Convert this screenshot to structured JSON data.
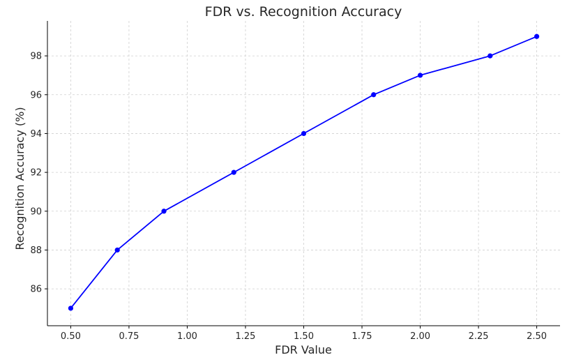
{
  "chart_data": {
    "type": "line",
    "title": "FDR vs. Recognition Accuracy",
    "xlabel": "FDR Value",
    "ylabel": "Recognition Accuracy (%)",
    "xlim": [
      0.4,
      2.6
    ],
    "ylim": [
      84.1,
      99.8
    ],
    "xticks": [
      "0.50",
      "0.75",
      "1.00",
      "1.25",
      "1.50",
      "1.75",
      "2.00",
      "2.25",
      "2.50"
    ],
    "yticks": [
      "86",
      "88",
      "90",
      "92",
      "94",
      "96",
      "98"
    ],
    "grid": true,
    "series": [
      {
        "color": "#0000ff",
        "marker": "circle",
        "x": [
          0.5,
          0.7,
          0.9,
          1.2,
          1.5,
          1.8,
          2.0,
          2.3,
          2.5
        ],
        "y": [
          85,
          88,
          90,
          92,
          94,
          96,
          97,
          98,
          99
        ]
      }
    ]
  }
}
